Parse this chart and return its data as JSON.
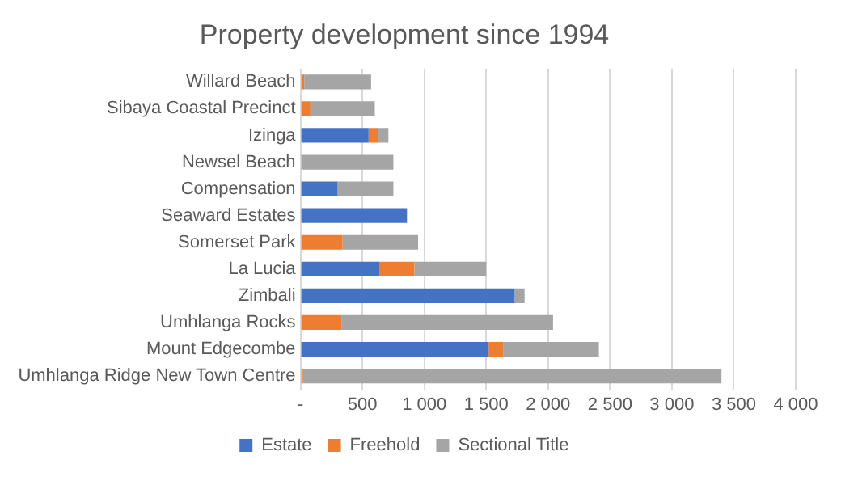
{
  "chart_data": {
    "type": "bar",
    "orientation": "horizontal",
    "stacked": true,
    "title": "Property development since 1994",
    "categories": [
      "Willard Beach",
      "Sibaya Coastal Precinct",
      "Izinga",
      "Newsel Beach",
      "Compensation",
      "Seaward Estates",
      "Somerset Park",
      "La Lucia",
      "Zimbali",
      "Umhlanga Rocks",
      "Mount Edgecombe",
      "Umhlanga Ridge New Town Centre"
    ],
    "series": [
      {
        "name": "Estate",
        "color": "#4472c4",
        "values": [
          0,
          0,
          550,
          0,
          300,
          860,
          0,
          640,
          1730,
          0,
          1520,
          0
        ]
      },
      {
        "name": "Freehold",
        "color": "#ed7d31",
        "values": [
          30,
          80,
          80,
          0,
          0,
          0,
          340,
          280,
          0,
          330,
          120,
          20
        ]
      },
      {
        "name": "Sectional Title",
        "color": "#a5a5a5",
        "values": [
          540,
          520,
          80,
          750,
          450,
          0,
          610,
          580,
          80,
          1710,
          770,
          3380
        ]
      }
    ],
    "xlim": [
      0,
      4000
    ],
    "xticks": [
      {
        "value": 0,
        "label": "-"
      },
      {
        "value": 500,
        "label": "500"
      },
      {
        "value": 1000,
        "label": "1 000"
      },
      {
        "value": 1500,
        "label": "1 500"
      },
      {
        "value": 2000,
        "label": "2 000"
      },
      {
        "value": 2500,
        "label": "2 500"
      },
      {
        "value": 3000,
        "label": "3 000"
      },
      {
        "value": 3500,
        "label": "3 500"
      },
      {
        "value": 4000,
        "label": "4 000"
      }
    ],
    "grid": "x",
    "legend": "bottom"
  }
}
